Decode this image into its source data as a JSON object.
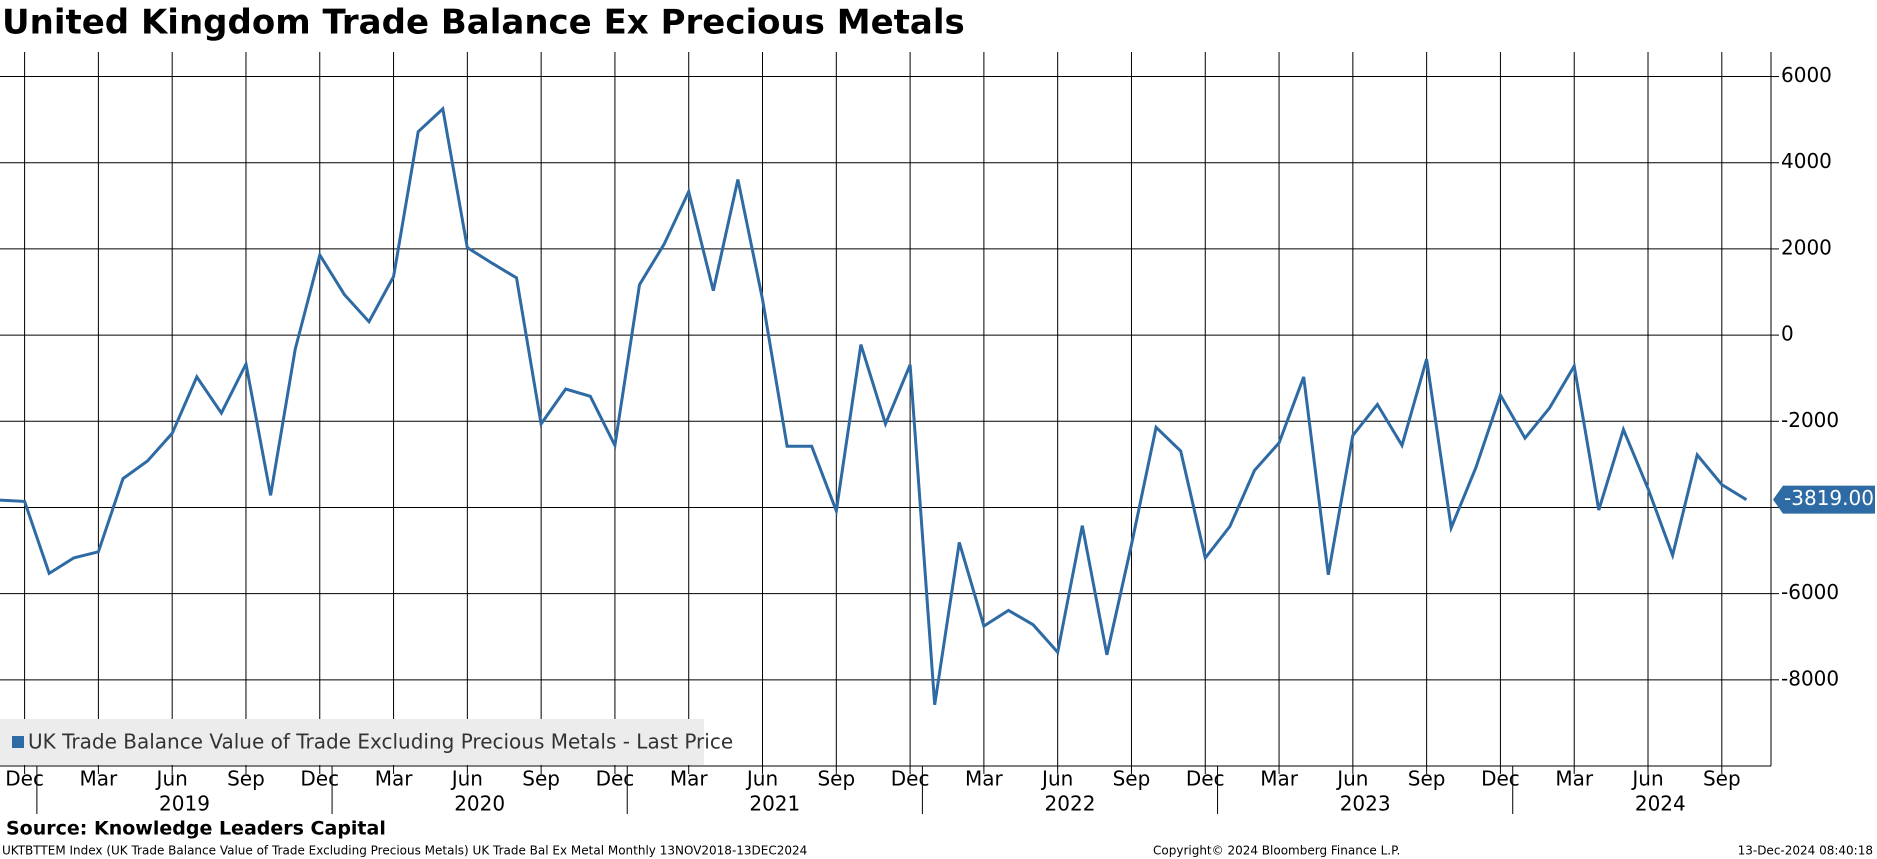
{
  "chart_data": {
    "type": "line",
    "title": "United Kingdom Trade Balance Ex Precious Metals",
    "x": [
      "2018-11",
      "2018-12",
      "2019-01",
      "2019-02",
      "2019-03",
      "2019-04",
      "2019-05",
      "2019-06",
      "2019-07",
      "2019-08",
      "2019-09",
      "2019-10",
      "2019-11",
      "2019-12",
      "2020-01",
      "2020-02",
      "2020-03",
      "2020-04",
      "2020-05",
      "2020-06",
      "2020-07",
      "2020-08",
      "2020-09",
      "2020-10",
      "2020-11",
      "2020-12",
      "2021-01",
      "2021-02",
      "2021-03",
      "2021-04",
      "2021-05",
      "2021-06",
      "2021-07",
      "2021-08",
      "2021-09",
      "2021-10",
      "2021-11",
      "2021-12",
      "2022-01",
      "2022-02",
      "2022-03",
      "2022-04",
      "2022-05",
      "2022-06",
      "2022-07",
      "2022-08",
      "2022-09",
      "2022-10",
      "2022-11",
      "2022-12",
      "2023-01",
      "2023-02",
      "2023-03",
      "2023-04",
      "2023-05",
      "2023-06",
      "2023-07",
      "2023-08",
      "2023-09",
      "2023-10",
      "2023-11",
      "2023-12",
      "2024-01",
      "2024-02",
      "2024-03",
      "2024-04",
      "2024-05",
      "2024-06",
      "2024-07",
      "2024-08",
      "2024-09",
      "2024-10"
    ],
    "series": [
      {
        "name": "UK Trade Balance Value of Trade Excluding Precious Metals - Last Price",
        "color": "#2e6aa3",
        "values": [
          -3830,
          -3860,
          -5530,
          -5170,
          -5030,
          -3330,
          -2920,
          -2280,
          -970,
          -1810,
          -670,
          -3720,
          -330,
          1860,
          940,
          310,
          1360,
          4720,
          5250,
          2030,
          1670,
          1330,
          -2060,
          -1250,
          -1420,
          -2560,
          1170,
          2110,
          3330,
          1030,
          3610,
          830,
          -2580,
          -2580,
          -4080,
          -220,
          -2060,
          -690,
          -8580,
          -4810,
          -6750,
          -6390,
          -6720,
          -7360,
          -4420,
          -7420,
          -4860,
          -2140,
          -2690,
          -5170,
          -4440,
          -3140,
          -2500,
          -970,
          -5560,
          -2330,
          -1610,
          -2560,
          -560,
          -4470,
          -3080,
          -1390,
          -2390,
          -1690,
          -720,
          -4060,
          -2190,
          -3560,
          -5110,
          -2780,
          -3470,
          -3819
        ],
        "last_value_label": "-3819.00"
      }
    ],
    "xlim": [
      "2018-11",
      "2024-11"
    ],
    "xticks": [
      {
        "value": "2018-12",
        "label": "Dec"
      },
      {
        "value": "2019-03",
        "label": "Mar"
      },
      {
        "value": "2019-06",
        "label": "Jun"
      },
      {
        "value": "2019-09",
        "label": "Sep"
      },
      {
        "value": "2019-12",
        "label": "Dec"
      },
      {
        "value": "2020-03",
        "label": "Mar"
      },
      {
        "value": "2020-06",
        "label": "Jun"
      },
      {
        "value": "2020-09",
        "label": "Sep"
      },
      {
        "value": "2020-12",
        "label": "Dec"
      },
      {
        "value": "2021-03",
        "label": "Mar"
      },
      {
        "value": "2021-06",
        "label": "Jun"
      },
      {
        "value": "2021-09",
        "label": "Sep"
      },
      {
        "value": "2021-12",
        "label": "Dec"
      },
      {
        "value": "2022-03",
        "label": "Mar"
      },
      {
        "value": "2022-06",
        "label": "Jun"
      },
      {
        "value": "2022-09",
        "label": "Sep"
      },
      {
        "value": "2022-12",
        "label": "Dec"
      },
      {
        "value": "2023-03",
        "label": "Mar"
      },
      {
        "value": "2023-06",
        "label": "Jun"
      },
      {
        "value": "2023-09",
        "label": "Sep"
      },
      {
        "value": "2023-12",
        "label": "Dec"
      },
      {
        "value": "2024-03",
        "label": "Mar"
      },
      {
        "value": "2024-06",
        "label": "Jun"
      },
      {
        "value": "2024-09",
        "label": "Sep"
      }
    ],
    "x_year_labels": [
      "2019",
      "2020",
      "2021",
      "2022",
      "2023",
      "2024"
    ],
    "ylim": [
      -10000,
      6570
    ],
    "yticks": [
      -8000,
      -6000,
      -4000,
      -2000,
      0,
      2000,
      4000,
      6000
    ],
    "grid": true,
    "legend": "bottom-left",
    "source": "Source: Knowledge Leaders Capital",
    "footer_left": "UKTBTTEM Index (UK Trade Balance Value  of Trade Excluding Precious Metals) UK Trade Bal Ex Metal  Monthly 13NOV2018-13DEC2024",
    "footer_center": "Copyright© 2024 Bloomberg Finance L.P.",
    "footer_right": "13-Dec-2024 08:40:18"
  }
}
